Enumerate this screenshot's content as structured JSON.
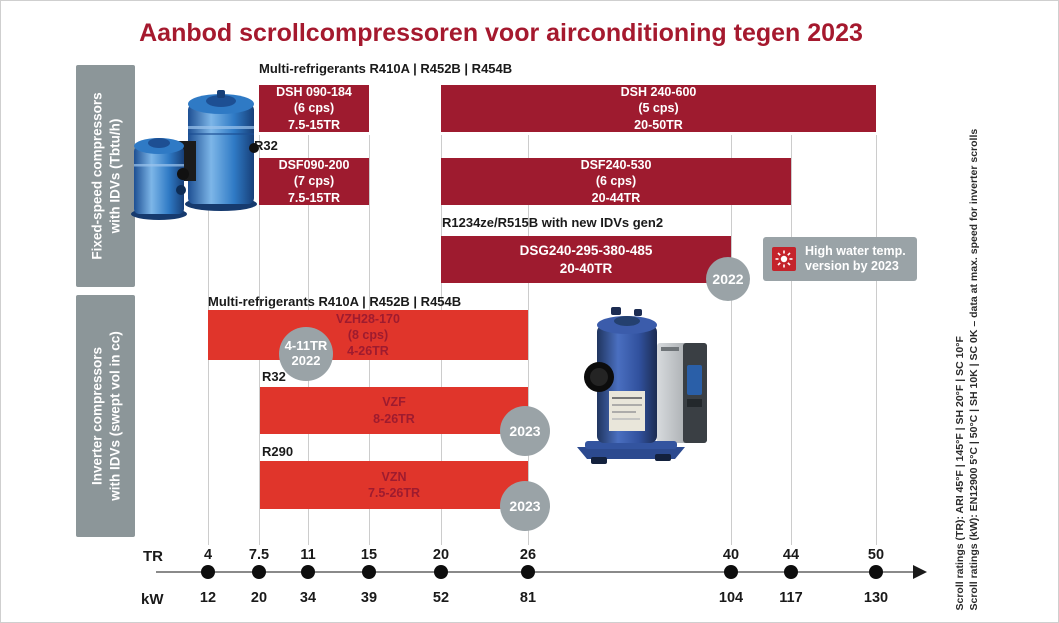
{
  "title": "Aanbod scrollcompressoren voor airconditioning tegen 2023",
  "section_labels": {
    "fixed": "Fixed-speed compressors\nwith IDVs (Tbtu/h)",
    "inverter": "Inverter compressors\nwith IDVs (swept vol in cc)"
  },
  "refrigerant_labels": {
    "fixed_multi": "Multi-refrigerants R410A | R452B | R454B",
    "fixed_r32": "R32",
    "fixed_r1234ze": "R1234ze/R515B with new IDVs gen2",
    "inverter_multi": "Multi-refrigerants R410A | R452B | R454B",
    "inverter_r32": "R32",
    "inverter_r290": "R290"
  },
  "bars": {
    "dsh_small": "DSH 090-184\n(6 cps)\n7.5-15TR",
    "dsh_large": "DSH 240-600\n(5 cps)\n20-50TR",
    "dsf_small": "DSF090-200\n(7 cps)\n7.5-15TR",
    "dsf_large": "DSF240-530\n(6 cps)\n20-44TR",
    "dsg": "DSG240-295-380-485\n20-40TR",
    "vzh": "VZH28-170\n(8 cps)\n4-26TR",
    "vzf": "VZF\n8-26TR",
    "vzn": "VZN\n7.5-26TR"
  },
  "badges": {
    "dsg_year": "2022",
    "vzh_range_year": "4-11TR\n2022",
    "vzf_year": "2023",
    "vzn_year": "2023",
    "high_water": "High water temp.\nversion by 2023"
  },
  "axis": {
    "tr_label": "TR",
    "kw_label": "kW",
    "tr_values": [
      "4",
      "7.5",
      "11",
      "15",
      "20",
      "26",
      "40",
      "44",
      "50"
    ],
    "kw_values": [
      "12",
      "20",
      "34",
      "39",
      "52",
      "81",
      "104",
      "117",
      "130"
    ]
  },
  "footnotes": {
    "line1": "Scroll ratings (TR): ARI 45°F | 145°F | SH 20°F | SC 10°F",
    "line2": "Scroll ratings (kW): EN12900 5°C | 50°C | SH 10K | SC 0K – data at max. speed for inverter scrolls"
  },
  "colors": {
    "dark_red": "#9E1B2F",
    "bright_red": "#E0352B",
    "gray": "#9AA3A7",
    "title_red": "#A5192E"
  },
  "chart_data": {
    "type": "bar",
    "subtype": "horizontal-range-infographic",
    "title": "Aanbod scrollcompressoren voor airconditioning tegen 2023",
    "x_axis": {
      "units": [
        "TR",
        "kW"
      ],
      "tr_ticks": [
        4,
        7.5,
        11,
        15,
        20,
        26,
        40,
        44,
        50
      ],
      "kw_ticks": [
        12,
        20,
        34,
        39,
        52,
        81,
        104,
        117,
        130
      ]
    },
    "series": [
      {
        "group": "Fixed-speed compressors with IDVs (Tbtu/h)",
        "refrigerants": "Multi-refrigerants R410A | R452B | R454B",
        "name": "DSH 090-184",
        "cps": 6,
        "tr_min": 7.5,
        "tr_max": 15,
        "color": "dark_red"
      },
      {
        "group": "Fixed-speed compressors with IDVs (Tbtu/h)",
        "refrigerants": "Multi-refrigerants R410A | R452B | R454B",
        "name": "DSH 240-600",
        "cps": 5,
        "tr_min": 20,
        "tr_max": 50,
        "color": "dark_red"
      },
      {
        "group": "Fixed-speed compressors with IDVs (Tbtu/h)",
        "refrigerants": "R32",
        "name": "DSF090-200",
        "cps": 7,
        "tr_min": 7.5,
        "tr_max": 15,
        "color": "dark_red"
      },
      {
        "group": "Fixed-speed compressors with IDVs (Tbtu/h)",
        "refrigerants": "R32",
        "name": "DSF240-530",
        "cps": 6,
        "tr_min": 20,
        "tr_max": 44,
        "color": "dark_red"
      },
      {
        "group": "Fixed-speed compressors with IDVs (Tbtu/h)",
        "refrigerants": "R1234ze/R515B with new IDVs gen2",
        "name": "DSG240-295-380-485",
        "tr_min": 20,
        "tr_max": 40,
        "year_badge": "2022",
        "color": "dark_red"
      },
      {
        "group": "Inverter compressors with IDVs (swept vol in cc)",
        "refrigerants": "Multi-refrigerants R410A | R452B | R454B",
        "name": "VZH28-170",
        "cps": 8,
        "tr_min": 4,
        "tr_max": 26,
        "year_badge": "4-11TR 2022",
        "color": "bright_red"
      },
      {
        "group": "Inverter compressors with IDVs (swept vol in cc)",
        "refrigerants": "R32",
        "name": "VZF",
        "tr_min": 8,
        "tr_max": 26,
        "year_badge": "2023",
        "color": "bright_red"
      },
      {
        "group": "Inverter compressors with IDVs (swept vol in cc)",
        "refrigerants": "R290",
        "name": "VZN",
        "tr_min": 7.5,
        "tr_max": 26,
        "year_badge": "2023",
        "color": "bright_red"
      }
    ],
    "annotations": [
      "High water temp. version by 2023"
    ],
    "footnotes": [
      "Scroll ratings (TR): ARI 45°F | 145°F | SH 20°F | SC 10°F",
      "Scroll ratings (kW): EN12900 5°C | 50°C | SH 10K | SC 0K – data at max. speed for inverter scrolls"
    ]
  }
}
